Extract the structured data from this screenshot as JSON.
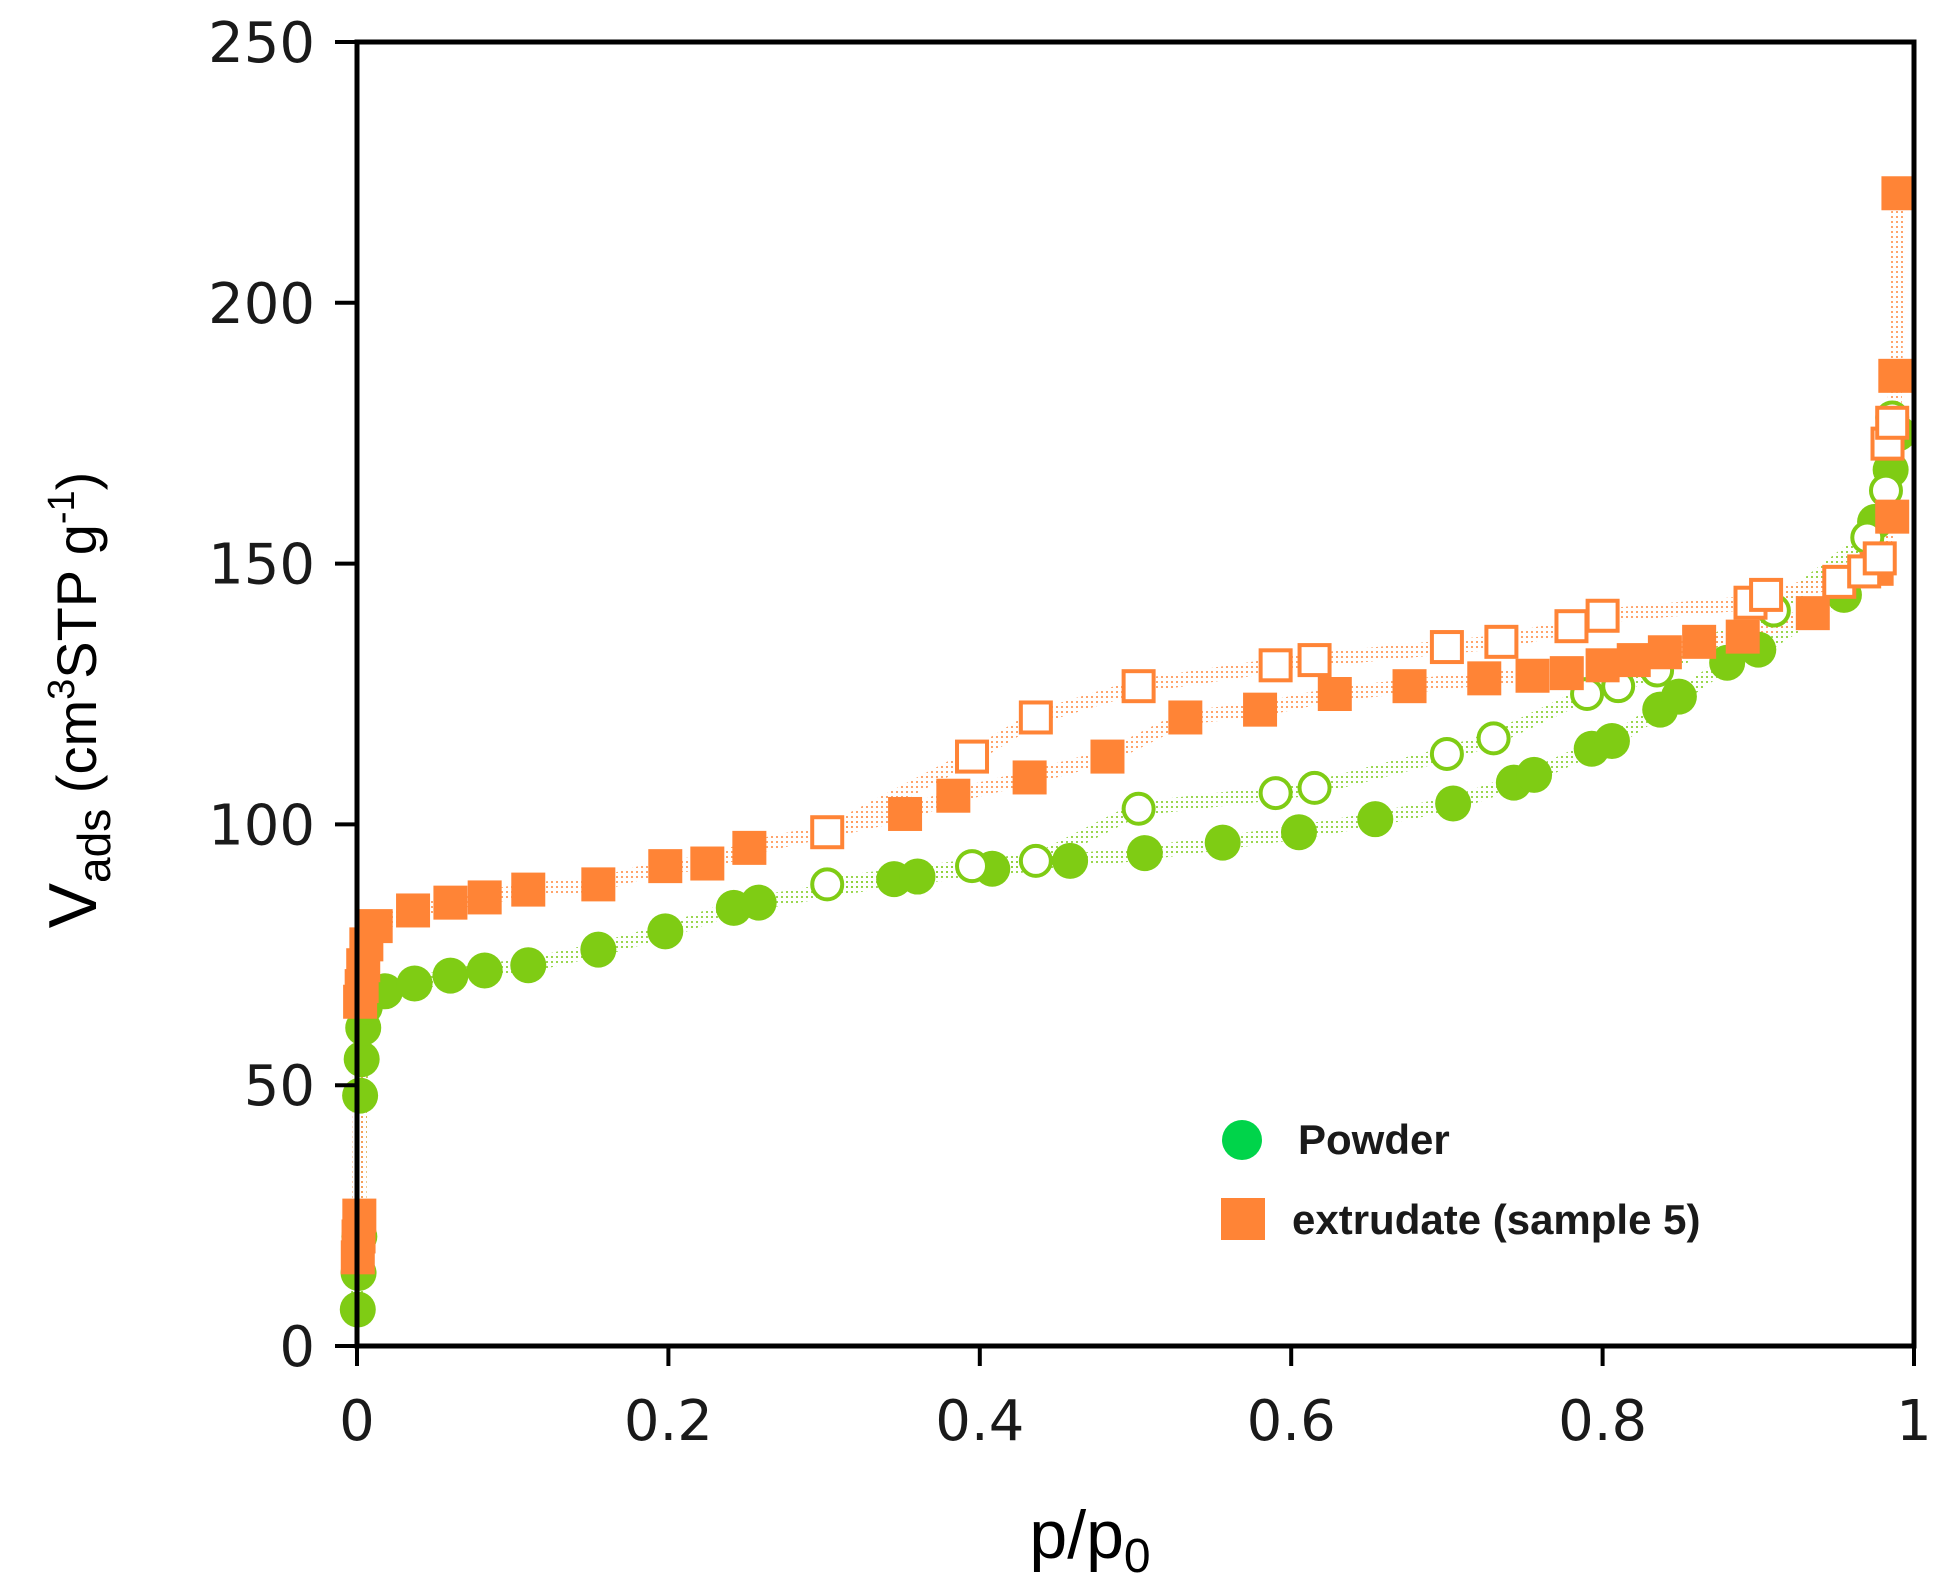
{
  "chart_data": {
    "type": "scatter",
    "title": "",
    "xlabel": "p/p0",
    "xlabel_main": "p/p",
    "xlabel_sub": "0",
    "ylabel_main": "V",
    "ylabel_sub": "ads",
    "ylabel_unit_a": " (cm",
    "ylabel_unit_sup": "3",
    "ylabel_unit_b": "STP g",
    "ylabel_unit_sup2": "-1",
    "ylabel_unit_c": ")",
    "xlim": [
      0,
      1
    ],
    "ylim": [
      0,
      250
    ],
    "xticks": [
      0,
      0.2,
      0.4,
      0.6,
      0.8,
      1
    ],
    "xtick_labels": [
      "0",
      "0.2",
      "0.4",
      "0.6",
      "0.8",
      "1"
    ],
    "yticks": [
      0,
      50,
      100,
      150,
      200,
      250
    ],
    "ytick_labels": [
      "0",
      "50",
      "100",
      "150",
      "200",
      "250"
    ],
    "grid": false,
    "legend_position": "bottom-right",
    "legend": [
      {
        "label": "Powder",
        "marker": "circle",
        "color": "#00d44a"
      },
      {
        "label": "extrudate (sample 5)",
        "marker": "square",
        "color": "#ff8436"
      }
    ],
    "series": [
      {
        "name": "Powder adsorption",
        "marker": "circle",
        "filled": true,
        "color": "#7fcc14",
        "x": [
          0.0005,
          0.001,
          0.0015,
          0.002,
          0.003,
          0.004,
          0.005,
          0.018,
          0.037,
          0.06,
          0.082,
          0.11,
          0.155,
          0.198,
          0.242,
          0.258,
          0.345,
          0.36,
          0.408,
          0.458,
          0.506,
          0.556,
          0.605,
          0.654,
          0.704,
          0.743,
          0.756,
          0.793,
          0.806,
          0.837,
          0.849,
          0.88,
          0.9,
          0.955,
          0.975,
          0.985,
          0.99
        ],
        "y": [
          7,
          14,
          21,
          48,
          55,
          61,
          65,
          68,
          69.5,
          71,
          72,
          73,
          76,
          79.5,
          84,
          85,
          89.5,
          90,
          91.5,
          93,
          94.5,
          96.5,
          98.5,
          101,
          104,
          108,
          109.5,
          114.5,
          116,
          122,
          124.5,
          131,
          133.5,
          144,
          158,
          168,
          175
        ]
      },
      {
        "name": "Powder desorption",
        "marker": "circle",
        "filled": false,
        "color": "#7fcc14",
        "x": [
          0.302,
          0.395,
          0.436,
          0.502,
          0.59,
          0.615,
          0.7,
          0.73,
          0.79,
          0.81,
          0.835,
          0.91,
          0.97,
          0.982,
          0.986
        ],
        "y": [
          88.5,
          92,
          93,
          103,
          106,
          107,
          113.5,
          116.5,
          125,
          126.5,
          129.5,
          141,
          155,
          164,
          178
        ]
      },
      {
        "name": "extrudate adsorption",
        "marker": "square",
        "filled": true,
        "color": "#ff8436",
        "x": [
          0.0005,
          0.001,
          0.0015,
          0.002,
          0.003,
          0.004,
          0.006,
          0.012,
          0.036,
          0.06,
          0.082,
          0.11,
          0.155,
          0.198,
          0.225,
          0.252,
          0.352,
          0.383,
          0.432,
          0.482,
          0.532,
          0.58,
          0.628,
          0.676,
          0.724,
          0.755,
          0.777,
          0.8,
          0.82,
          0.84,
          0.862,
          0.89,
          0.935,
          0.976,
          0.986,
          0.988,
          0.99
        ],
        "y": [
          17,
          21,
          25,
          66,
          69,
          73,
          77,
          80.5,
          83.5,
          85,
          86,
          87.5,
          88.5,
          92,
          92.5,
          95.5,
          102,
          105.5,
          109,
          113,
          120.5,
          122,
          125,
          126.5,
          128,
          128.5,
          129,
          130.5,
          131.5,
          133,
          135,
          136,
          140.5,
          149,
          159,
          186,
          221
        ]
      },
      {
        "name": "extrudate desorption",
        "marker": "square",
        "filled": false,
        "color": "#ff8436",
        "x": [
          0.302,
          0.395,
          0.436,
          0.502,
          0.59,
          0.615,
          0.7,
          0.735,
          0.78,
          0.8,
          0.895,
          0.905,
          0.952,
          0.968,
          0.978,
          0.983,
          0.986
        ],
        "y": [
          98.5,
          113,
          120.5,
          126.5,
          130.5,
          131.5,
          134,
          135,
          138,
          140,
          142.5,
          144,
          146.5,
          148.5,
          151,
          173,
          177
        ]
      }
    ]
  }
}
